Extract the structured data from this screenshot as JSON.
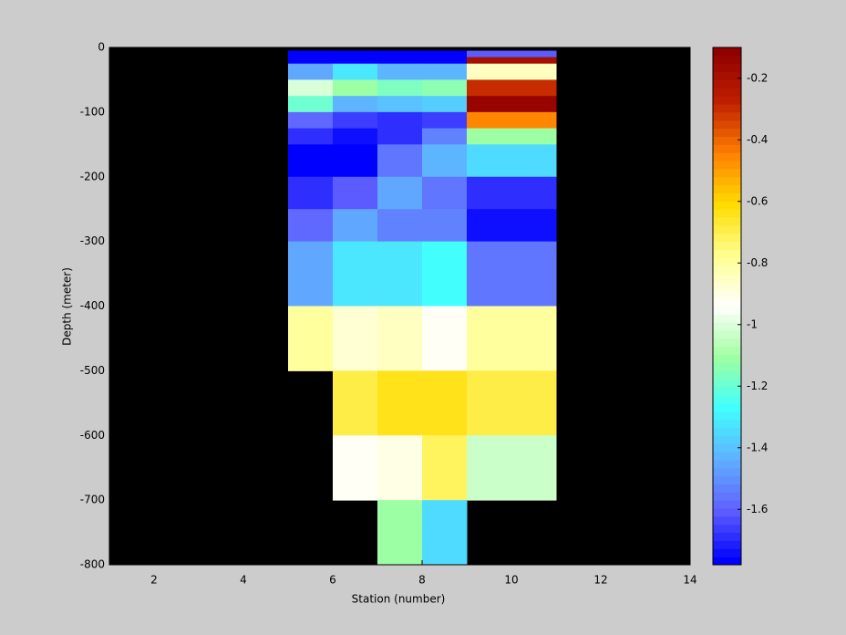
{
  "chart_data": {
    "type": "heatmap",
    "xlabel": "Station (number)",
    "ylabel": "Depth (meter)",
    "x_edges": [
      5,
      6,
      7,
      8,
      9,
      11
    ],
    "y_edges": [
      -5,
      -15,
      -25,
      -50,
      -75,
      -100,
      -125,
      -150,
      -200,
      -250,
      -300,
      -400,
      -500,
      -600,
      -700,
      -800
    ],
    "z": [
      [
        -1.78,
        -1.78,
        -1.76,
        -1.76,
        -1.6
      ],
      [
        -1.78,
        -1.78,
        -1.76,
        -1.76,
        -0.2
      ],
      [
        -1.45,
        -1.32,
        -1.42,
        -1.42,
        -0.85
      ],
      [
        -1.0,
        -1.1,
        -1.17,
        -1.15,
        -0.3
      ],
      [
        -1.2,
        -1.42,
        -1.4,
        -1.38,
        -0.15
      ],
      [
        -1.58,
        -1.65,
        -1.68,
        -1.66,
        -0.45
      ],
      [
        -1.68,
        -1.74,
        -1.7,
        -1.52,
        -1.1
      ],
      [
        -1.76,
        -1.76,
        -1.55,
        -1.42,
        -1.35
      ],
      [
        -1.7,
        -1.6,
        -1.45,
        -1.55,
        -1.7
      ],
      [
        -1.58,
        -1.45,
        -1.52,
        -1.52,
        -1.75
      ],
      [
        -1.45,
        -1.32,
        -1.32,
        -1.26,
        -1.55
      ],
      [
        -0.8,
        -0.87,
        -0.85,
        -0.92,
        -0.8
      ],
      [
        null,
        -0.7,
        -0.65,
        -0.65,
        -0.68
      ],
      [
        null,
        -0.92,
        -0.9,
        -0.72,
        -1.02
      ],
      [
        null,
        null,
        -1.12,
        -1.35,
        null
      ]
    ],
    "xlim": [
      1,
      14
    ],
    "xticks": [
      2,
      4,
      6,
      8,
      10,
      12,
      14
    ],
    "ylim": [
      -800,
      0
    ],
    "yticks": [
      0,
      -100,
      -200,
      -300,
      -400,
      -500,
      -600,
      -700,
      -800
    ],
    "clim": [
      -1.78,
      -0.1
    ],
    "cticks": [
      -0.2,
      -0.4,
      -0.6,
      -0.8,
      -1,
      -1.2,
      -1.4,
      -1.6
    ],
    "colormap": [
      "#0000ff",
      "#6060ff",
      "#60b0ff",
      "#40ffff",
      "#a0ffa0",
      "#ffffff",
      "#ffff90",
      "#ffdc00",
      "#ff8000",
      "#c02000",
      "#900000"
    ],
    "colormap_levels": 64,
    "background": "#000000"
  }
}
